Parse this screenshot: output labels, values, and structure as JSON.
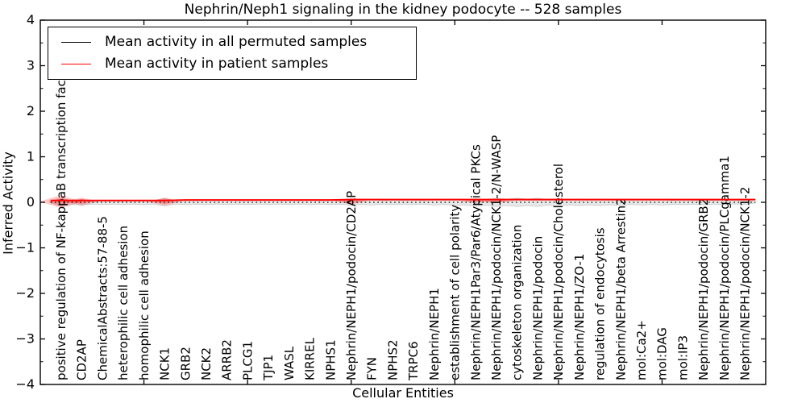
{
  "title": "Nephrin/Neph1 signaling in the kidney podocyte -- 528 samples",
  "axes": {
    "y_label": "Inferred Activity",
    "x_label": "Cellular Entities",
    "y_tick_labels": [
      "4",
      "3",
      "2",
      "1",
      "0",
      "−1",
      "−2",
      "−3",
      "−4"
    ],
    "y_tick_values": [
      4,
      3,
      2,
      1,
      0,
      -1,
      -2,
      -3,
      -4
    ]
  },
  "legend": {
    "entries": [
      {
        "label": "Mean activity in all permuted samples",
        "color": "#000000"
      },
      {
        "label": "Mean activity in patient samples",
        "color": "#ff0000"
      }
    ]
  },
  "chart_data": {
    "type": "line",
    "title": "Nephrin/Neph1 signaling in the kidney podocyte -- 528 samples",
    "xlabel": "Cellular Entities",
    "ylabel": "Inferred Activity",
    "ylim": [
      -4,
      4
    ],
    "grid": false,
    "legend_position": "upper left",
    "x_major_tick_every": 5,
    "categories": [
      "positive regulation of NF-kappaB transcription factor a",
      "CD2AP",
      "ChemicalAbstracts:57-88-5",
      "heterophilic cell adhesion",
      "homophilic cell adhesion",
      "NCK1",
      "GRB2",
      "NCK2",
      "ARRB2",
      "PLCG1",
      "TJP1",
      "WASL",
      "KIRREL",
      "NPHS1",
      "Nephrin/NEPH1/podocin/CD2AP",
      "FYN",
      "NPHS2",
      "TRPC6",
      "Nephrin/NEPH1",
      "establishment of cell polarity",
      "Nephrin/NEPH1Par3/Par6/Atypical PKCs",
      "Nephrin/NEPH1/podocin/NCK1-2/N-WASP",
      "cytoskeleton organization",
      "Nephrin/NEPH1/podocin",
      "Nephrin/NEPH1/podocin/Cholesterol",
      "Nephrin/NEPH1/ZO-1",
      "regulation of endocytosis",
      "Nephrin/NEPH1/beta Arrestin2",
      "mol:Ca2+",
      "mol:DAG",
      "mol:IP3",
      "Nephrin/NEPH1/podocin/GRB2",
      "Nephrin/NEPH1/podocin/PLCgamma1",
      "Nephrin/NEPH1/podocin/NCK1-2"
    ],
    "series": [
      {
        "name": "Mean activity in all permuted samples",
        "color": "#000000",
        "style": "dotted",
        "values": [
          0,
          0,
          0,
          0,
          0,
          0,
          0,
          0,
          0,
          0,
          0,
          0,
          0,
          0,
          0,
          0,
          0,
          0,
          0,
          0,
          0,
          0,
          0,
          0,
          0,
          0,
          0,
          0,
          0,
          0,
          0,
          0,
          0,
          0
        ]
      },
      {
        "name": "Mean activity in patient samples",
        "color": "#ff0000",
        "style": "solid",
        "values": [
          0.04,
          0.04,
          0.04,
          0.04,
          0.04,
          0.04,
          0.05,
          0.05,
          0.05,
          0.05,
          0.05,
          0.05,
          0.05,
          0.05,
          0.06,
          0.06,
          0.06,
          0.06,
          0.06,
          0.06,
          0.06,
          0.06,
          0.06,
          0.06,
          0.06,
          0.06,
          0.06,
          0.06,
          0.06,
          0.06,
          0.06,
          0.06,
          0.06,
          0.06
        ]
      }
    ],
    "violins": {
      "permuted_halfheights": [
        0.08,
        0.06,
        0.05,
        0.05,
        0.05,
        0.08,
        0.05,
        0.05,
        0.05,
        0.05,
        0.05,
        0.05,
        0.05,
        0.05,
        0.07,
        0.06,
        0.05,
        0.05,
        0.06,
        0.07,
        0.08,
        0.09,
        0.09,
        0.09,
        0.08,
        0.07,
        0.07,
        0.07,
        0.06,
        0.06,
        0.05,
        0.05,
        0.05,
        0.045
      ],
      "patient_halfheights": [
        0.14,
        0.09,
        0,
        0,
        0,
        0.09,
        0,
        0,
        0,
        0,
        0,
        0,
        0,
        0,
        0.07,
        0,
        0,
        0,
        0,
        0,
        0.035,
        0.045,
        0,
        0,
        0,
        0,
        0,
        0,
        0,
        0,
        0,
        0,
        0,
        0
      ],
      "permuted_fill": "#e9e9e9",
      "permuted_edge": "#c9c9c9",
      "patient_fill": "rgba(255,0,0,0.20)"
    }
  }
}
